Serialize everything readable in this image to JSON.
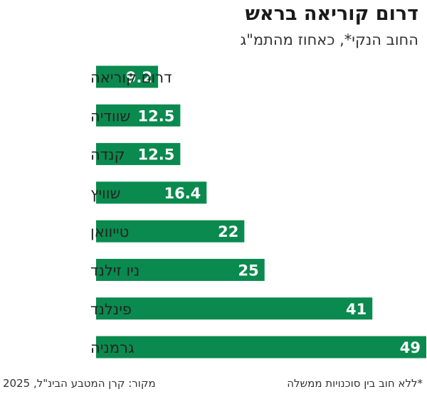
{
  "chart_data": {
    "type": "bar",
    "orientation": "horizontal",
    "title": "דרום קוריאה בראש",
    "subtitle": "החוב הנקי*, כאחוז מהתמ\"ג",
    "categories": [
      "דרום קוריאה",
      "שוודיה",
      "קנדה",
      "שוויץ",
      "טייוואן",
      "ניו זילנד",
      "פינלנד",
      "גרמניה"
    ],
    "values": [
      9.2,
      12.5,
      12.5,
      16.4,
      22,
      25,
      41,
      49
    ],
    "value_labels": [
      "9.2",
      "12.5",
      "12.5",
      "16.4",
      "22",
      "25",
      "41",
      "49"
    ],
    "xlim": [
      0,
      49
    ],
    "grid": false,
    "bar_color": "#0a8a4e",
    "label_color": "#ffffff"
  },
  "footer": {
    "note": "*ללא חוב בין סוכנויות ממשלה",
    "source": "מקור: קרן המטבע הבינ\"ל, 2025"
  }
}
